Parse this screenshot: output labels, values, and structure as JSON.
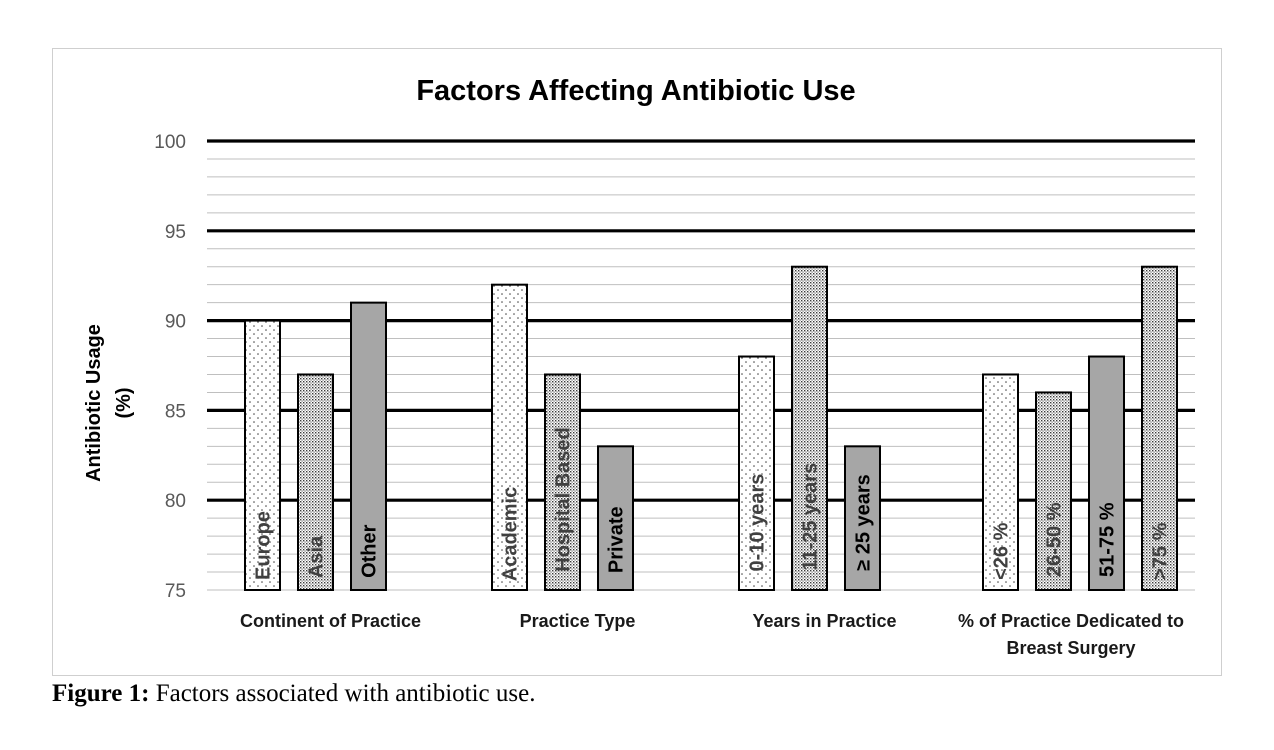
{
  "chart_data": {
    "type": "bar",
    "title": "Factors Affecting Antibiotic Use",
    "ylabel_lines": [
      "Antibiotic Usage",
      "(%)"
    ],
    "ylim": [
      75,
      100
    ],
    "yticks": [
      "75",
      "80",
      "85",
      "90",
      "95",
      "100"
    ],
    "grid": true,
    "groups": [
      {
        "category": "Continent of Practice",
        "bars": [
          {
            "label": "Europe",
            "value": 90,
            "pattern": "sparse"
          },
          {
            "label": "Asia",
            "value": 87,
            "pattern": "dense"
          },
          {
            "label": "Other",
            "value": 91,
            "pattern": "solid"
          }
        ]
      },
      {
        "category": "Practice Type",
        "bars": [
          {
            "label": "Academic",
            "value": 92,
            "pattern": "sparse"
          },
          {
            "label": "Hospital Based",
            "value": 87,
            "pattern": "dense"
          },
          {
            "label": "Private",
            "value": 83,
            "pattern": "solid"
          }
        ]
      },
      {
        "category": "Years in Practice",
        "bars": [
          {
            "label": "0-10 years",
            "value": 88,
            "pattern": "sparse"
          },
          {
            "label": "11-25 years",
            "value": 93,
            "pattern": "dense"
          },
          {
            "label": "≥ 25 years",
            "value": 83,
            "pattern": "solid"
          }
        ]
      },
      {
        "category": "% of Practice Dedicated to Breast Surgery",
        "category_lines": [
          "% of Practice Dedicated to",
          "Breast Surgery"
        ],
        "bars": [
          {
            "label": "<26 %",
            "value": 87,
            "pattern": "sparse"
          },
          {
            "label": "26-50 %",
            "value": 86,
            "pattern": "dense"
          },
          {
            "label": "51-75 %",
            "value": 88,
            "pattern": "solid"
          },
          {
            "label": ">75 %",
            "value": 93,
            "pattern": "dense"
          }
        ]
      }
    ],
    "colors": {
      "solid_fill": "#a6a6a6",
      "dot": "#444444",
      "grid_major": "#000000",
      "grid_minor": "#bfbfbf"
    }
  },
  "caption": {
    "label": "Figure 1:",
    "text": " Factors associated with antibiotic use."
  }
}
